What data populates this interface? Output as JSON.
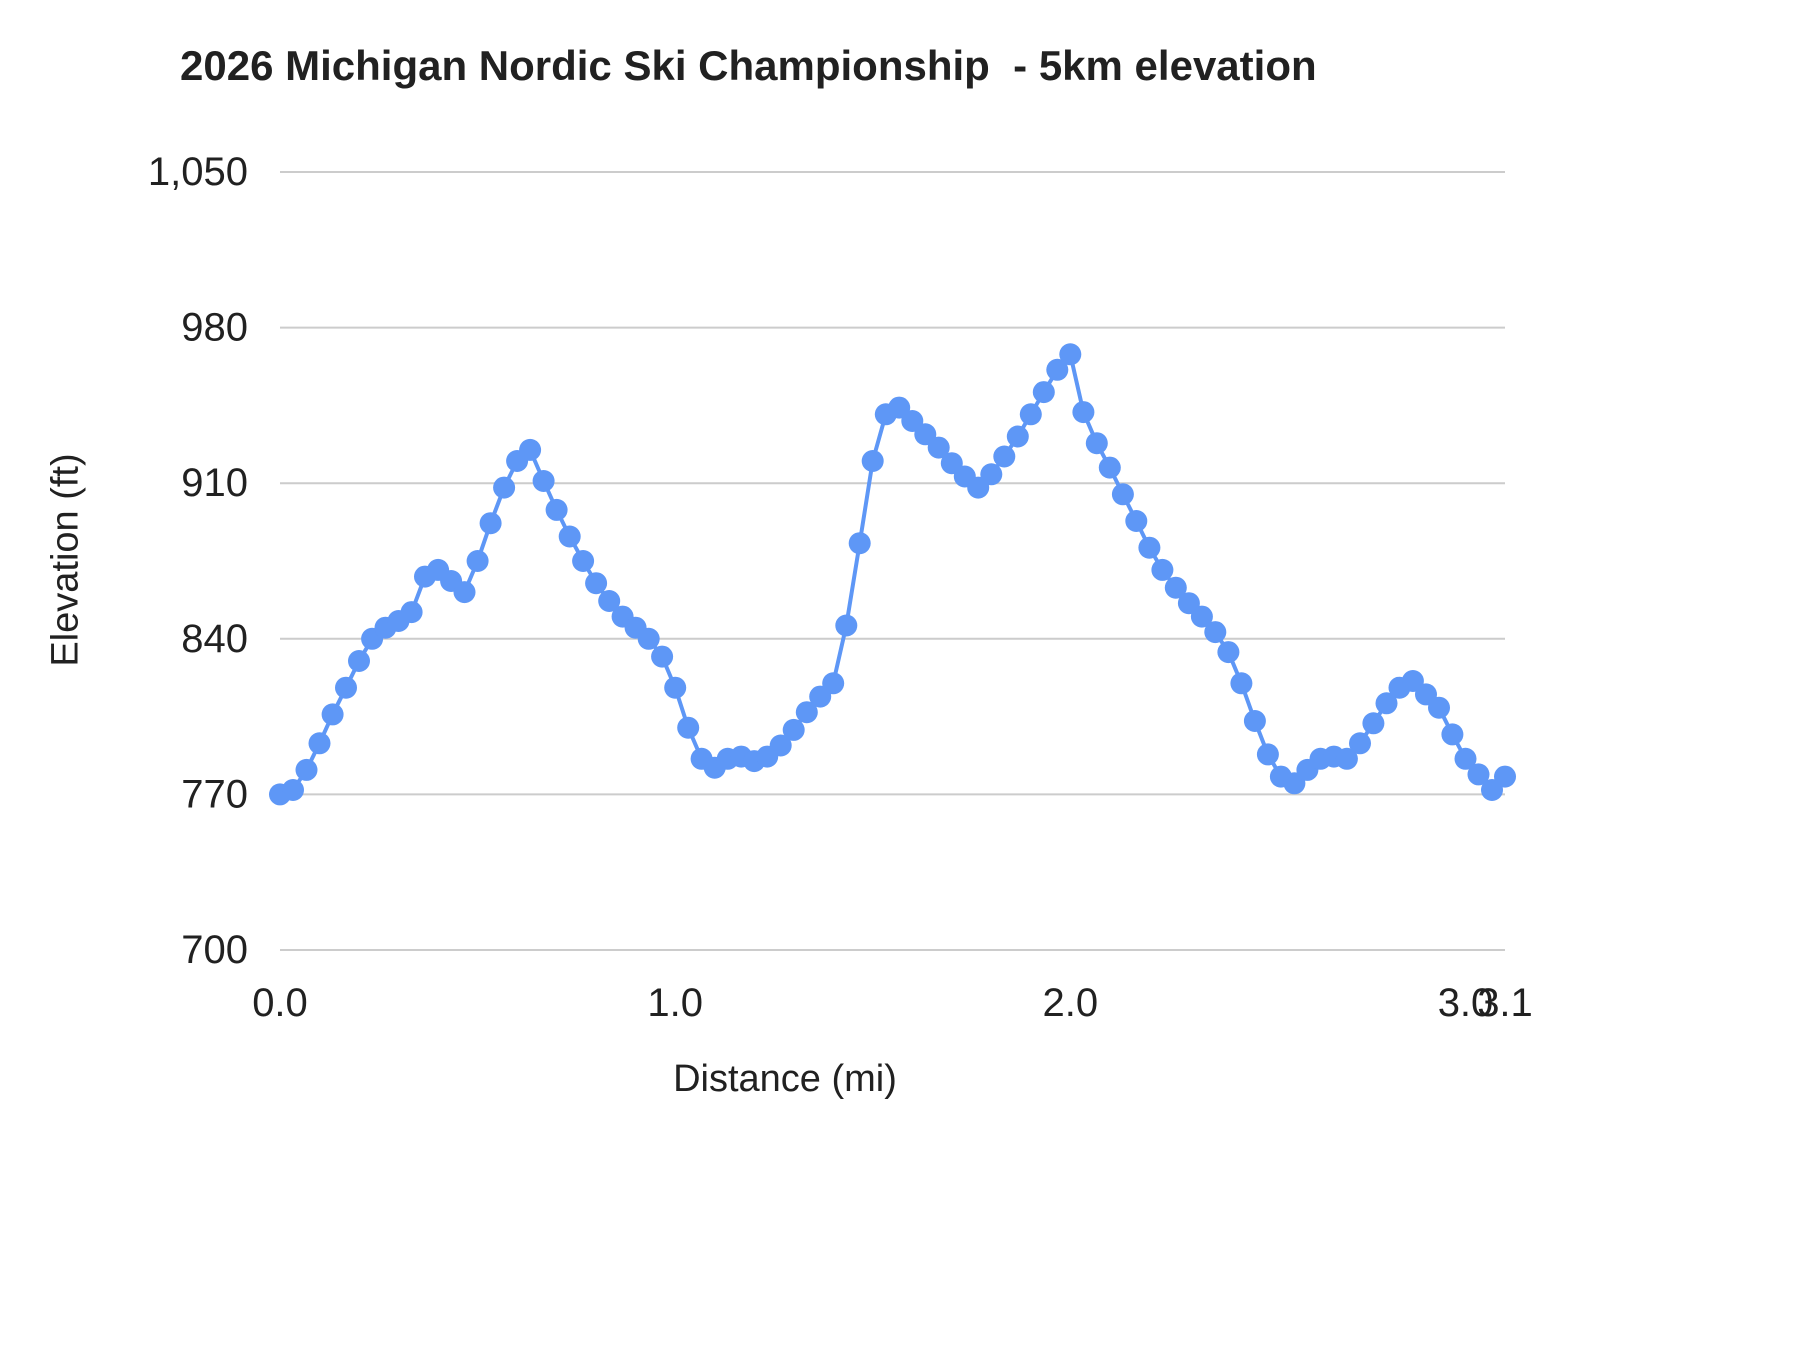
{
  "page": {
    "background": "#ffffff"
  },
  "chart_data": {
    "type": "line",
    "title": "2026 Michigan Nordic Ski Championship  - 5km elevation",
    "xlabel": "Distance (mi)",
    "ylabel": "Elevation (ft)",
    "series_name": "elevation",
    "series_color": "#5e97f6",
    "grid_color": "#cccccc",
    "text_color": "#212121",
    "legend": "none",
    "grid": "horizontal-only",
    "xlim": [
      0,
      3.1
    ],
    "ylim": [
      700,
      1050
    ],
    "y_ticks": [
      {
        "value": 700,
        "label": "700"
      },
      {
        "value": 770,
        "label": "770"
      },
      {
        "value": 840,
        "label": "840"
      },
      {
        "value": 910,
        "label": "910"
      },
      {
        "value": 980,
        "label": "980"
      },
      {
        "value": 1050,
        "label": "1,050"
      }
    ],
    "x_ticks": [
      {
        "value": 0,
        "label": "0.0"
      },
      {
        "value": 1,
        "label": "1.0"
      },
      {
        "value": 2,
        "label": "2.0"
      },
      {
        "value": 3,
        "label": "3.0"
      },
      {
        "value": 3.1,
        "label": "3.1"
      }
    ],
    "marker_radius": 11,
    "line_width": 4,
    "x": [
      0.0,
      0.033,
      0.067,
      0.1,
      0.133,
      0.167,
      0.2,
      0.233,
      0.267,
      0.3,
      0.333,
      0.367,
      0.4,
      0.433,
      0.467,
      0.5,
      0.533,
      0.567,
      0.6,
      0.633,
      0.667,
      0.7,
      0.733,
      0.767,
      0.8,
      0.833,
      0.867,
      0.9,
      0.933,
      0.967,
      1.0,
      1.033,
      1.067,
      1.1,
      1.133,
      1.167,
      1.2,
      1.233,
      1.267,
      1.3,
      1.333,
      1.367,
      1.4,
      1.433,
      1.467,
      1.5,
      1.533,
      1.567,
      1.6,
      1.633,
      1.667,
      1.7,
      1.733,
      1.767,
      1.8,
      1.833,
      1.867,
      1.9,
      1.933,
      1.967,
      2.0,
      2.033,
      2.067,
      2.1,
      2.133,
      2.167,
      2.2,
      2.233,
      2.267,
      2.3,
      2.333,
      2.367,
      2.4,
      2.433,
      2.467,
      2.5,
      2.533,
      2.567,
      2.6,
      2.633,
      2.667,
      2.7,
      2.733,
      2.767,
      2.8,
      2.833,
      2.867,
      2.9,
      2.933,
      2.967,
      3.0,
      3.033,
      3.067,
      3.1
    ],
    "elevation_ft": [
      770,
      772,
      781,
      793,
      806,
      818,
      830,
      840,
      845,
      848,
      852,
      868,
      871,
      866,
      861,
      875,
      892,
      908,
      920,
      925,
      911,
      898,
      886,
      875,
      865,
      857,
      850,
      845,
      840,
      832,
      818,
      800,
      786,
      782,
      786,
      787,
      785,
      787,
      792,
      799,
      807,
      814,
      820,
      846,
      883,
      920,
      941,
      944,
      938,
      932,
      926,
      919,
      913,
      908,
      914,
      922,
      931,
      941,
      951,
      961,
      968,
      942,
      928,
      917,
      905,
      893,
      881,
      871,
      863,
      856,
      850,
      843,
      834,
      820,
      803,
      788,
      778,
      775,
      781,
      786,
      787,
      786,
      793,
      802,
      811,
      818,
      821,
      815,
      809,
      797,
      786,
      779,
      772,
      778
    ]
  }
}
